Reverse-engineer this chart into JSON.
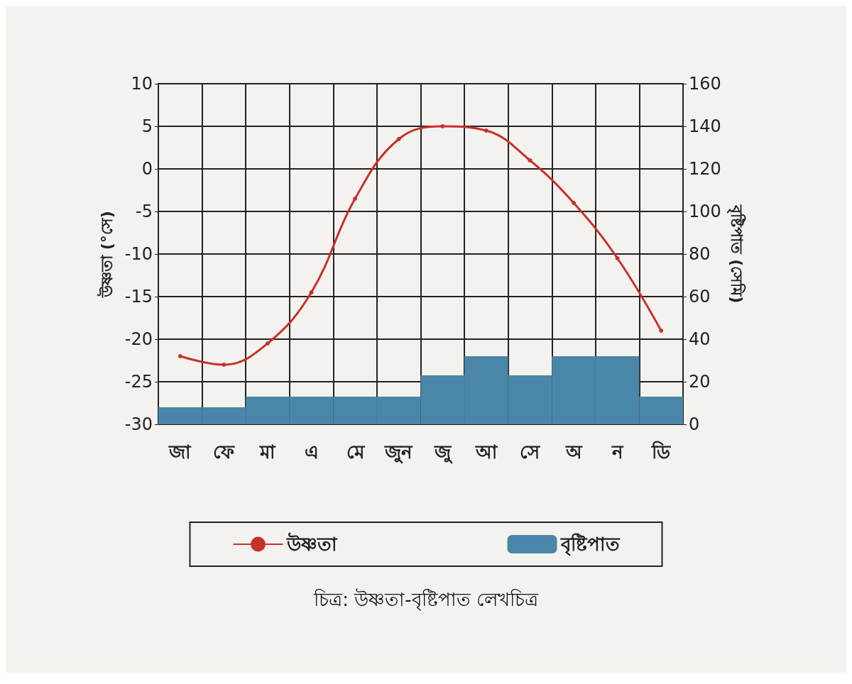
{
  "chart_data": {
    "type": "bar",
    "categories": [
      "জা",
      "ফে",
      "মা",
      "এ",
      "মে",
      "জুন",
      "জু",
      "আ",
      "সে",
      "অ",
      "ন",
      "ডি"
    ],
    "ylabel": "উষ্ণতা (°সে)",
    "y2label": "বৃষ্টিপাত (সেমি)",
    "series": [
      {
        "name": "উষ্ণতা",
        "type": "line",
        "color": "#c8302a",
        "values": [
          -22,
          -23,
          -20.5,
          -14.5,
          -3.5,
          3.5,
          5,
          4.5,
          1,
          -4,
          -10.5,
          -19
        ]
      },
      {
        "name": "বৃষ্টিপাত",
        "axis": "y2",
        "color": "#4a86a8",
        "values": [
          8,
          8,
          13,
          13,
          13,
          13,
          23,
          32,
          23,
          32,
          32,
          13
        ]
      }
    ],
    "ylim": [
      -30,
      10
    ],
    "yticks": [
      -30,
      -25,
      -20,
      -15,
      -10,
      -5,
      0,
      5,
      10
    ],
    "y2lim": [
      0,
      160
    ],
    "y2ticks": [
      0,
      20,
      40,
      60,
      80,
      100,
      120,
      140,
      160
    ],
    "grid": true,
    "legend": "bottom",
    "marker": "circle",
    "annotations": [
      "চিত্র: উষ্ণতা-বৃষ্টিপাত লেখচিত্র"
    ]
  }
}
